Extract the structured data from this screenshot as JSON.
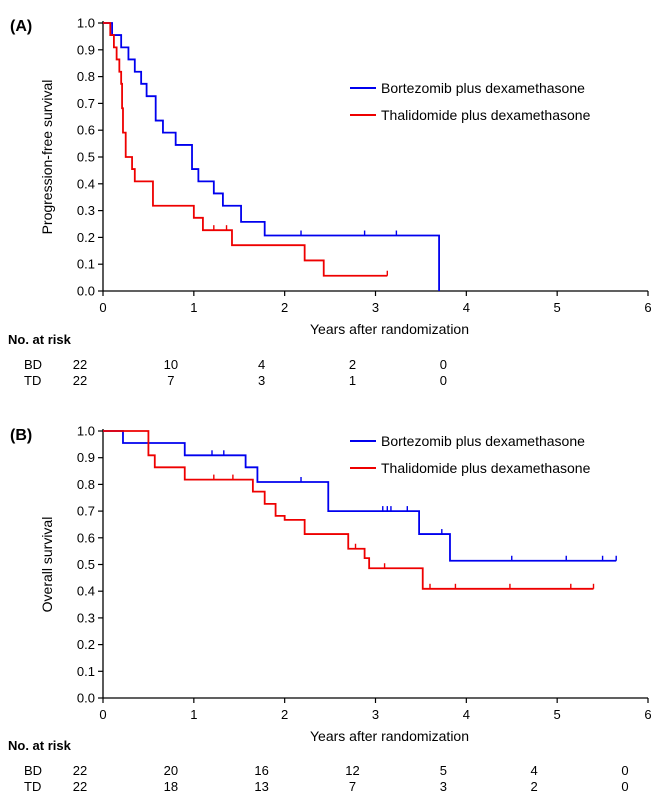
{
  "chart_data": [
    {
      "type": "line",
      "step": true,
      "panel_label": "(A)",
      "title": "",
      "xlabel": "Years after randomization",
      "ylabel": "Progression-free survival",
      "xlim": [
        0,
        6
      ],
      "ylim": [
        0,
        1.0
      ],
      "x_ticks": [
        "0",
        "1",
        "2",
        "3",
        "4",
        "5",
        "6"
      ],
      "y_ticks": [
        "0.0",
        "0.1",
        "0.2",
        "0.3",
        "0.4",
        "0.5",
        "0.6",
        "0.7",
        "0.8",
        "0.9",
        "1.0"
      ],
      "grid": false,
      "legend_position": "top-right",
      "series": [
        {
          "name": "Bortezomib plus dexamethasone",
          "color": "#0000ee",
          "steps": [
            [
              0,
              1.0
            ],
            [
              0.1,
              0.955
            ],
            [
              0.2,
              0.909
            ],
            [
              0.28,
              0.864
            ],
            [
              0.35,
              0.818
            ],
            [
              0.42,
              0.773
            ],
            [
              0.48,
              0.727
            ],
            [
              0.58,
              0.636
            ],
            [
              0.66,
              0.591
            ],
            [
              0.8,
              0.545
            ],
            [
              0.98,
              0.455
            ],
            [
              1.05,
              0.409
            ],
            [
              1.22,
              0.364
            ],
            [
              1.32,
              0.318
            ],
            [
              1.52,
              0.258
            ],
            [
              1.78,
              0.207
            ],
            [
              3.7,
              0.207
            ],
            [
              3.7,
              0.0
            ]
          ],
          "censor_x": [
            2.18,
            2.88,
            3.23
          ]
        },
        {
          "name": "Thalidomide plus dexamethasone",
          "color": "#ee0000",
          "steps": [
            [
              0,
              1.0
            ],
            [
              0.08,
              0.955
            ],
            [
              0.12,
              0.909
            ],
            [
              0.15,
              0.864
            ],
            [
              0.18,
              0.818
            ],
            [
              0.2,
              0.773
            ],
            [
              0.21,
              0.682
            ],
            [
              0.22,
              0.591
            ],
            [
              0.25,
              0.5
            ],
            [
              0.32,
              0.455
            ],
            [
              0.35,
              0.409
            ],
            [
              0.55,
              0.318
            ],
            [
              1.0,
              0.273
            ],
            [
              1.1,
              0.227
            ],
            [
              1.42,
              0.171
            ],
            [
              2.22,
              0.114
            ],
            [
              2.43,
              0.057
            ],
            [
              3.13,
              0.057
            ]
          ],
          "censor_x": [
            1.22,
            1.36,
            3.13
          ]
        }
      ],
      "at_risk": {
        "title": "No. at risk",
        "rows": [
          {
            "label": "BD",
            "values": [
              "22",
              "10",
              "4",
              "2",
              "0"
            ]
          },
          {
            "label": "TD",
            "values": [
              "22",
              "7",
              "3",
              "1",
              "0"
            ]
          }
        ],
        "times": [
          0,
          1,
          2,
          3,
          4
        ]
      }
    },
    {
      "type": "line",
      "step": true,
      "panel_label": "(B)",
      "title": "",
      "xlabel": "Years after randomization",
      "ylabel": "Overall survival",
      "xlim": [
        0,
        6
      ],
      "ylim": [
        0,
        1.0
      ],
      "x_ticks": [
        "0",
        "1",
        "2",
        "3",
        "4",
        "5",
        "6"
      ],
      "y_ticks": [
        "0.0",
        "0.1",
        "0.2",
        "0.3",
        "0.4",
        "0.5",
        "0.6",
        "0.7",
        "0.8",
        "0.9",
        "1.0"
      ],
      "grid": false,
      "legend_position": "top-right",
      "series": [
        {
          "name": "Bortezomib plus dexamethasone",
          "color": "#0000ee",
          "steps": [
            [
              0,
              1.0
            ],
            [
              0.22,
              0.955
            ],
            [
              0.9,
              0.909
            ],
            [
              1.57,
              0.864
            ],
            [
              1.7,
              0.809
            ],
            [
              2.48,
              0.7
            ],
            [
              3.48,
              0.614
            ],
            [
              3.82,
              0.514
            ],
            [
              5.65,
              0.514
            ]
          ],
          "censor_x": [
            1.2,
            1.33,
            2.18,
            3.08,
            3.13,
            3.17,
            3.35,
            3.73,
            4.5,
            5.1,
            5.5,
            5.65
          ]
        },
        {
          "name": "Thalidomide plus dexamethasone",
          "color": "#ee0000",
          "steps": [
            [
              0,
              1.0
            ],
            [
              0.5,
              0.909
            ],
            [
              0.57,
              0.864
            ],
            [
              0.9,
              0.818
            ],
            [
              1.65,
              0.773
            ],
            [
              1.78,
              0.727
            ],
            [
              1.9,
              0.682
            ],
            [
              2.0,
              0.667
            ],
            [
              2.22,
              0.614
            ],
            [
              2.7,
              0.559
            ],
            [
              2.88,
              0.524
            ],
            [
              2.93,
              0.486
            ],
            [
              3.52,
              0.409
            ],
            [
              5.4,
              0.409
            ]
          ],
          "censor_x": [
            1.22,
            1.43,
            2.78,
            3.1,
            3.6,
            3.88,
            4.48,
            5.15,
            5.4
          ]
        }
      ],
      "at_risk": {
        "title": "No. at risk",
        "rows": [
          {
            "label": "BD",
            "values": [
              "22",
              "20",
              "16",
              "12",
              "5",
              "4",
              "0"
            ]
          },
          {
            "label": "TD",
            "values": [
              "22",
              "18",
              "13",
              "7",
              "3",
              "2",
              "0"
            ]
          }
        ],
        "times": [
          0,
          1,
          2,
          3,
          4,
          5,
          6
        ]
      }
    }
  ]
}
